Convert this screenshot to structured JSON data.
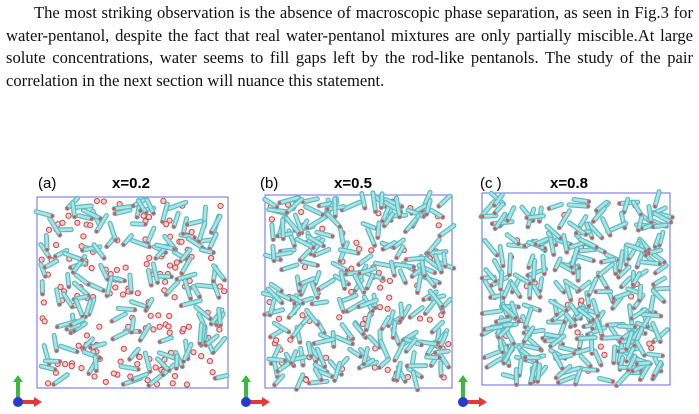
{
  "paragraph": "The most striking observation is the absence of macroscopic phase separation, as seen in Fig.3 for water-pentanol, despite the fact that real water-pentanol mixtures are only partially miscible.At large solute concentrations, water seems to fill gaps left by the rod-like pentanols. The study of the pair correlation in the next section will nuance this statement.",
  "figure": {
    "panels": [
      {
        "label": "(a)",
        "composition": "x=0.2"
      },
      {
        "label": "(b)",
        "composition": "x=0.5"
      },
      {
        "label": "(c )",
        "composition": "x=0.8"
      }
    ]
  }
}
